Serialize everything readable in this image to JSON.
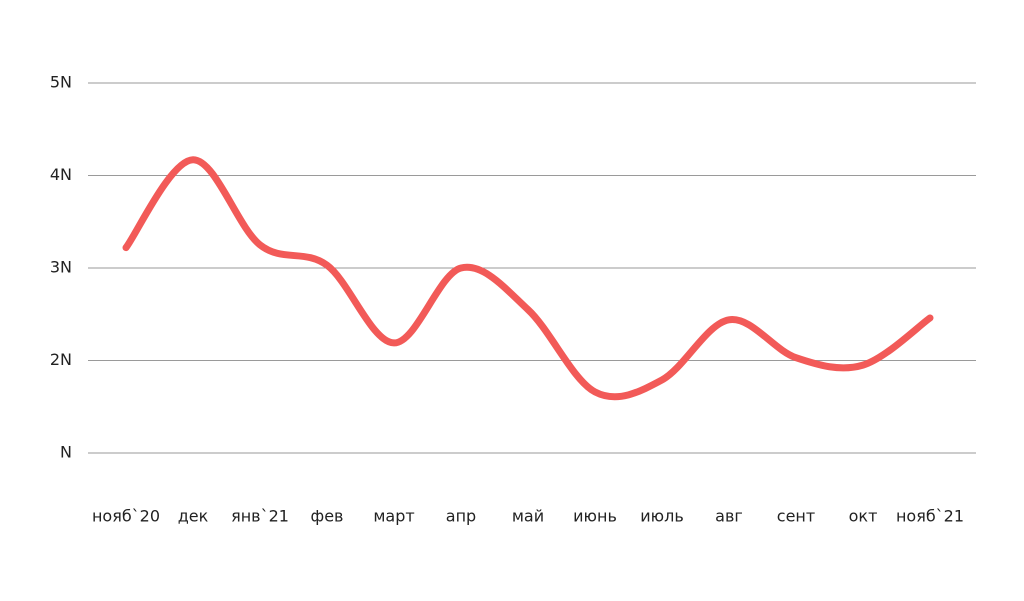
{
  "chart_data": {
    "type": "line",
    "categories": [
      "нояб`20",
      "дек",
      "янв`21",
      "фев",
      "март",
      "апр",
      "май",
      "июнь",
      "июль",
      "авг",
      "сент",
      "окт",
      "нояб`21"
    ],
    "values": [
      3.22,
      4.17,
      3.25,
      3.03,
      2.19,
      3.0,
      2.55,
      1.66,
      1.79,
      2.44,
      2.03,
      1.95,
      2.46
    ],
    "color": "#f25a58",
    "ylim": [
      1,
      5
    ],
    "yticks": [
      {
        "value": 1,
        "label": "N"
      },
      {
        "value": 2,
        "label": "2N"
      },
      {
        "value": 3,
        "label": "3N"
      },
      {
        "value": 4,
        "label": "4N"
      },
      {
        "value": 5,
        "label": "5N"
      }
    ],
    "grid": true
  }
}
